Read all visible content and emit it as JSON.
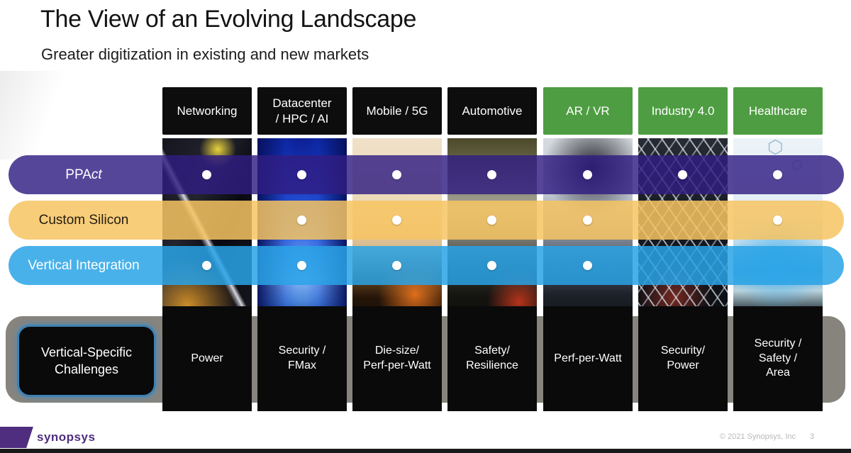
{
  "slide": {
    "title": "The View of an Evolving Landscape",
    "subtitle": "Greater digitization in existing and new markets",
    "logo_text": "synopsys",
    "copyright": "© 2021 Synopsys, Inc",
    "page_number": "3"
  },
  "colors": {
    "header_black": "#0d0d0d",
    "header_green": "#4f9d42",
    "ppact_purple": "rgba(49,29,131,0.82)",
    "custom_silicon_yellow": "rgba(247,196,97,0.85)",
    "vertical_integration_blue": "rgba(41,163,230,0.85)",
    "challenge_border_blue": "#3f82b4",
    "synopsys_purple": "#4f2d7f"
  },
  "columns": [
    {
      "key": "networking",
      "header": "Networking",
      "header_style": "black",
      "challenge": "Power"
    },
    {
      "key": "datacenter-hpc-ai",
      "header": "Datacenter\n/ HPC / AI",
      "header_style": "black",
      "challenge": "Security /\nFMax"
    },
    {
      "key": "mobile-5g",
      "header": "Mobile / 5G",
      "header_style": "black",
      "challenge": "Die-size/\nPerf-per-Watt"
    },
    {
      "key": "automotive",
      "header": "Automotive",
      "header_style": "black",
      "challenge": "Safety/\nResilience"
    },
    {
      "key": "ar-vr",
      "header": "AR / VR",
      "header_style": "green",
      "challenge": "Perf-per-Watt"
    },
    {
      "key": "industry-4-0",
      "header": "Industry 4.0",
      "header_style": "green",
      "challenge": "Security/\nPower"
    },
    {
      "key": "healthcare",
      "header": "Healthcare",
      "header_style": "green",
      "challenge": "Security /\nSafety /\nArea"
    }
  ],
  "rows": [
    {
      "key": "ppact",
      "label": "PPAct",
      "label_main": "PPA",
      "label_italic": "ct",
      "color": "ppact_purple",
      "text": "light",
      "dots": [
        1,
        1,
        1,
        1,
        1,
        1,
        1
      ]
    },
    {
      "key": "custom-silicon",
      "label": "Custom Silicon",
      "color": "custom_silicon_yellow",
      "text": "dark",
      "dots": [
        0,
        1,
        1,
        1,
        1,
        0,
        1
      ]
    },
    {
      "key": "vertical-integration",
      "label": "Vertical Integration",
      "color": "vertical_integration_blue",
      "text": "light",
      "dots": [
        1,
        1,
        1,
        1,
        1,
        0,
        0
      ]
    }
  ],
  "challenges": {
    "label": "Vertical-Specific Challenges"
  },
  "icons": {
    "hexagon": "⬡"
  }
}
